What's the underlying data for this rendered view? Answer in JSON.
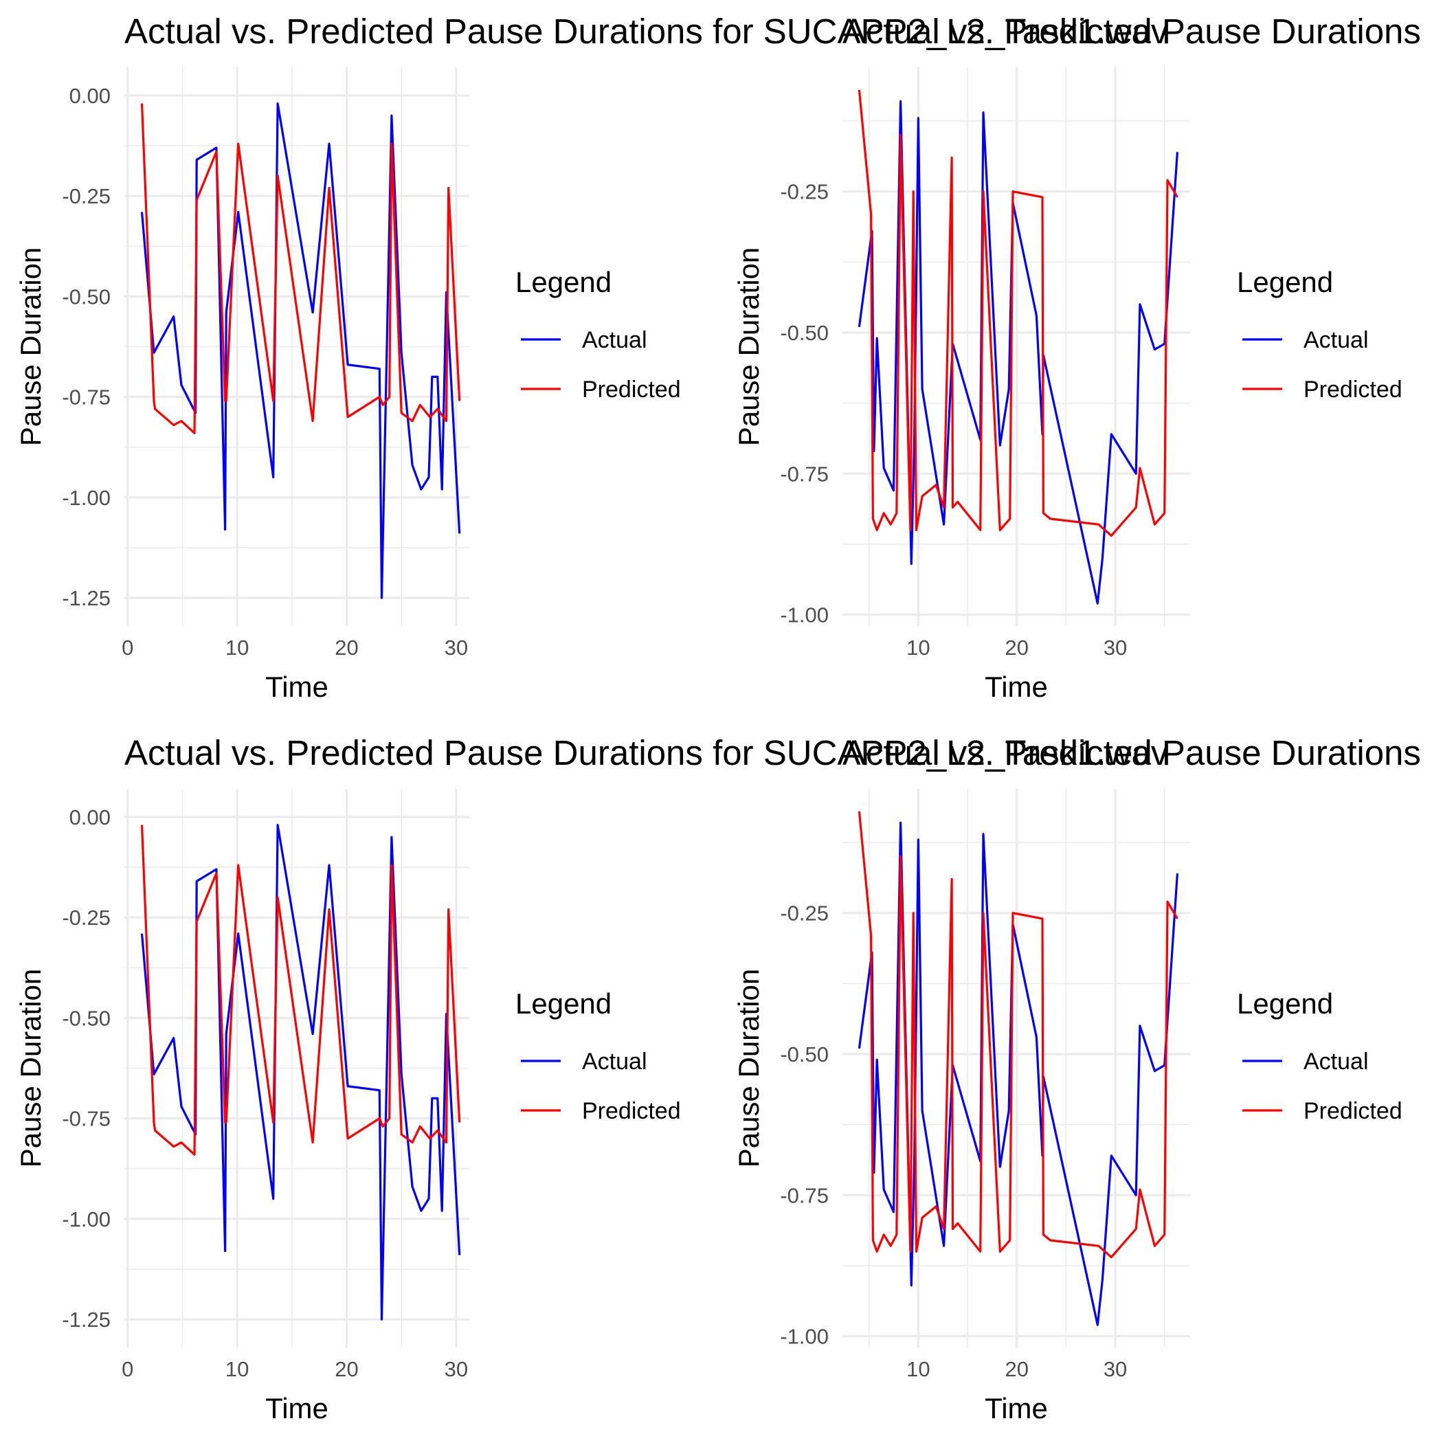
{
  "chart_data": [
    {
      "id": "tl",
      "type": "line",
      "title": "Actual vs. Predicted Pause Durations for SUCAPP2_L2_Task1.wav",
      "xlabel": "Time",
      "ylabel": "Pause Duration",
      "xlim": [
        -0.3,
        31.2
      ],
      "ylim": [
        -1.32,
        0.07
      ],
      "xticks": [
        0,
        10,
        20,
        30
      ],
      "yticks": [
        0.0,
        -0.25,
        -0.5,
        -0.75,
        -1.0,
        -1.25
      ],
      "ytick_labels": [
        "0.00",
        "-0.25",
        "-0.50",
        "-0.75",
        "-1.00",
        "-1.25"
      ],
      "grid": true,
      "legend": {
        "title": "Legend",
        "position": "right"
      },
      "series": [
        {
          "name": "Actual",
          "color": "#0000ff",
          "x": [
            1.3,
            2.4,
            4.2,
            4.9,
            6.2,
            6.3,
            8.1,
            8.9,
            9.0,
            10.1,
            13.3,
            13.7,
            16.9,
            18.4,
            20.1,
            23.0,
            23.2,
            24.1,
            25.0,
            26.0,
            26.8,
            27.5,
            27.8,
            28.3,
            28.7,
            29.1,
            30.3
          ],
          "y": [
            -0.29,
            -0.64,
            -0.55,
            -0.72,
            -0.79,
            -0.16,
            -0.13,
            -1.08,
            -0.54,
            -0.29,
            -0.95,
            -0.02,
            -0.54,
            -0.12,
            -0.67,
            -0.68,
            -1.25,
            -0.05,
            -0.64,
            -0.92,
            -0.98,
            -0.95,
            -0.7,
            -0.7,
            -0.98,
            -0.49,
            -1.09
          ]
        },
        {
          "name": "Predicted",
          "color": "#ff0000",
          "x": [
            1.3,
            2.4,
            2.5,
            4.2,
            4.9,
            6.1,
            6.3,
            8.1,
            8.9,
            9.0,
            10.1,
            13.3,
            13.7,
            16.9,
            18.4,
            20.1,
            23.0,
            23.3,
            23.9,
            24.1,
            25.0,
            26.0,
            26.7,
            27.6,
            28.3,
            29.1,
            29.3,
            30.3
          ],
          "y": [
            -0.02,
            -0.76,
            -0.78,
            -0.82,
            -0.81,
            -0.84,
            -0.26,
            -0.14,
            -0.76,
            -0.76,
            -0.12,
            -0.76,
            -0.2,
            -0.81,
            -0.23,
            -0.8,
            -0.75,
            -0.77,
            -0.75,
            -0.12,
            -0.79,
            -0.81,
            -0.77,
            -0.8,
            -0.78,
            -0.81,
            -0.23,
            -0.76
          ]
        }
      ]
    },
    {
      "id": "tr",
      "type": "line",
      "title": "Actual vs. Predicted Pause Durations",
      "xlabel": "Time",
      "ylabel": "Pause Duration",
      "xlim": [
        2.3,
        37.6
      ],
      "ylim": [
        -1.02,
        -0.03
      ],
      "xticks": [
        10,
        20,
        30
      ],
      "yticks": [
        -0.25,
        -0.5,
        -0.75,
        -1.0
      ],
      "ytick_labels": [
        "-0.25",
        "-0.50",
        "-0.75",
        "-1.00"
      ],
      "grid": true,
      "legend": {
        "title": "Legend",
        "position": "right"
      },
      "series": [
        {
          "name": "Actual",
          "color": "#0000ff",
          "x": [
            4.0,
            5.3,
            5.5,
            5.8,
            6.5,
            7.5,
            8.2,
            9.3,
            9.6,
            10.0,
            10.4,
            12.6,
            13.5,
            16.3,
            16.6,
            18.3,
            19.2,
            19.6,
            22.0,
            22.6,
            22.7,
            28.2,
            28.7,
            29.6,
            32.1,
            32.5,
            34.0,
            35.0,
            36.3
          ],
          "y": [
            -0.49,
            -0.32,
            -0.71,
            -0.51,
            -0.74,
            -0.78,
            -0.09,
            -0.91,
            -0.69,
            -0.12,
            -0.6,
            -0.84,
            -0.52,
            -0.69,
            -0.11,
            -0.7,
            -0.6,
            -0.27,
            -0.47,
            -0.68,
            -0.54,
            -0.98,
            -0.9,
            -0.68,
            -0.75,
            -0.45,
            -0.53,
            -0.52,
            -0.18
          ]
        },
        {
          "name": "Predicted",
          "color": "#ff0000",
          "x": [
            4.0,
            5.2,
            5.4,
            5.8,
            6.5,
            7.2,
            7.8,
            8.2,
            9.2,
            9.5,
            9.8,
            10.4,
            11.8,
            12.6,
            13.4,
            13.5,
            14.0,
            16.3,
            16.6,
            18.3,
            19.3,
            19.6,
            22.6,
            22.7,
            23.4,
            28.3,
            29.6,
            32.1,
            32.5,
            34.0,
            35.0,
            35.3,
            36.3
          ],
          "y": [
            -0.07,
            -0.29,
            -0.83,
            -0.85,
            -0.82,
            -0.84,
            -0.82,
            -0.15,
            -0.85,
            -0.25,
            -0.85,
            -0.79,
            -0.77,
            -0.81,
            -0.19,
            -0.81,
            -0.8,
            -0.85,
            -0.25,
            -0.85,
            -0.83,
            -0.25,
            -0.26,
            -0.82,
            -0.83,
            -0.84,
            -0.86,
            -0.81,
            -0.74,
            -0.84,
            -0.82,
            -0.23,
            -0.26
          ]
        }
      ]
    },
    {
      "id": "bl",
      "type": "line",
      "title": "Actual vs. Predicted Pause Durations for SUCAPP2_L2_Task1.wav",
      "xlabel": "Time",
      "ylabel": "Pause Duration",
      "xlim": [
        -0.3,
        31.2
      ],
      "ylim": [
        -1.32,
        0.07
      ],
      "xticks": [
        0,
        10,
        20,
        30
      ],
      "yticks": [
        0.0,
        -0.25,
        -0.5,
        -0.75,
        -1.0,
        -1.25
      ],
      "ytick_labels": [
        "0.00",
        "-0.25",
        "-0.50",
        "-0.75",
        "-1.00",
        "-1.25"
      ],
      "grid": true,
      "legend": {
        "title": "Legend",
        "position": "right"
      },
      "series": [
        {
          "name": "Actual",
          "color": "#0000ff",
          "x": [
            1.3,
            2.4,
            4.2,
            4.9,
            6.2,
            6.3,
            8.1,
            8.9,
            9.0,
            10.1,
            13.3,
            13.7,
            16.9,
            18.4,
            20.1,
            23.0,
            23.2,
            24.1,
            25.0,
            26.0,
            26.8,
            27.5,
            27.8,
            28.3,
            28.7,
            29.1,
            30.3
          ],
          "y": [
            -0.29,
            -0.64,
            -0.55,
            -0.72,
            -0.79,
            -0.16,
            -0.13,
            -1.08,
            -0.54,
            -0.29,
            -0.95,
            -0.02,
            -0.54,
            -0.12,
            -0.67,
            -0.68,
            -1.25,
            -0.05,
            -0.64,
            -0.92,
            -0.98,
            -0.95,
            -0.7,
            -0.7,
            -0.98,
            -0.49,
            -1.09
          ]
        },
        {
          "name": "Predicted",
          "color": "#ff0000",
          "x": [
            1.3,
            2.4,
            2.5,
            4.2,
            4.9,
            6.1,
            6.3,
            8.1,
            8.9,
            9.0,
            10.1,
            13.3,
            13.7,
            16.9,
            18.4,
            20.1,
            23.0,
            23.3,
            23.9,
            24.1,
            25.0,
            26.0,
            26.7,
            27.6,
            28.3,
            29.1,
            29.3,
            30.3
          ],
          "y": [
            -0.02,
            -0.76,
            -0.78,
            -0.82,
            -0.81,
            -0.84,
            -0.26,
            -0.14,
            -0.76,
            -0.76,
            -0.12,
            -0.76,
            -0.2,
            -0.81,
            -0.23,
            -0.8,
            -0.75,
            -0.77,
            -0.75,
            -0.12,
            -0.79,
            -0.81,
            -0.77,
            -0.8,
            -0.78,
            -0.81,
            -0.23,
            -0.76
          ]
        }
      ]
    },
    {
      "id": "br",
      "type": "line",
      "title": "Actual vs. Predicted Pause Durations",
      "xlabel": "Time",
      "ylabel": "Pause Duration",
      "xlim": [
        2.3,
        37.6
      ],
      "ylim": [
        -1.02,
        -0.03
      ],
      "xticks": [
        10,
        20,
        30
      ],
      "yticks": [
        -0.25,
        -0.5,
        -0.75,
        -1.0
      ],
      "ytick_labels": [
        "-0.25",
        "-0.50",
        "-0.75",
        "-1.00"
      ],
      "grid": true,
      "legend": {
        "title": "Legend",
        "position": "right"
      },
      "series": [
        {
          "name": "Actual",
          "color": "#0000ff",
          "x": [
            4.0,
            5.3,
            5.5,
            5.8,
            6.5,
            7.5,
            8.2,
            9.3,
            9.6,
            10.0,
            10.4,
            12.6,
            13.5,
            16.3,
            16.6,
            18.3,
            19.2,
            19.6,
            22.0,
            22.6,
            22.7,
            28.2,
            28.7,
            29.6,
            32.1,
            32.5,
            34.0,
            35.0,
            36.3
          ],
          "y": [
            -0.49,
            -0.32,
            -0.71,
            -0.51,
            -0.74,
            -0.78,
            -0.09,
            -0.91,
            -0.69,
            -0.12,
            -0.6,
            -0.84,
            -0.52,
            -0.69,
            -0.11,
            -0.7,
            -0.6,
            -0.27,
            -0.47,
            -0.68,
            -0.54,
            -0.98,
            -0.9,
            -0.68,
            -0.75,
            -0.45,
            -0.53,
            -0.52,
            -0.18
          ]
        },
        {
          "name": "Predicted",
          "color": "#ff0000",
          "x": [
            4.0,
            5.2,
            5.4,
            5.8,
            6.5,
            7.2,
            7.8,
            8.2,
            9.2,
            9.5,
            9.8,
            10.4,
            11.8,
            12.6,
            13.4,
            13.5,
            14.0,
            16.3,
            16.6,
            18.3,
            19.3,
            19.6,
            22.6,
            22.7,
            23.4,
            28.3,
            29.6,
            32.1,
            32.5,
            34.0,
            35.0,
            35.3,
            36.3
          ],
          "y": [
            -0.07,
            -0.29,
            -0.83,
            -0.85,
            -0.82,
            -0.84,
            -0.82,
            -0.15,
            -0.85,
            -0.25,
            -0.85,
            -0.79,
            -0.77,
            -0.81,
            -0.19,
            -0.81,
            -0.8,
            -0.85,
            -0.25,
            -0.85,
            -0.83,
            -0.25,
            -0.26,
            -0.82,
            -0.83,
            -0.84,
            -0.86,
            -0.81,
            -0.74,
            -0.84,
            -0.82,
            -0.23,
            -0.26
          ]
        }
      ]
    }
  ]
}
